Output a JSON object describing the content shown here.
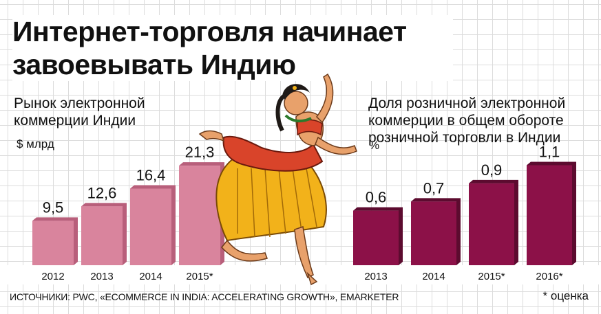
{
  "title_line1": "Интернет-торговля начинает",
  "title_line2": "завоевывать Индию",
  "source": "ИСТОЧНИКИ: PWC, «ECOMMERCE IN INDIA: ACCELERATING GROWTH», EMARKETER",
  "footnote": "* оценка",
  "colors": {
    "left_bar": "#d9849d",
    "left_bar_side": "#b85f7b",
    "right_bar": "#8c1148",
    "right_bar_side": "#5c0b2f"
  },
  "chart_data": [
    {
      "type": "bar",
      "title_lines": [
        "Рынок электронной",
        "коммерции Индии"
      ],
      "unit": "$ млрд",
      "categories": [
        "2012",
        "2013",
        "2014",
        "2015*"
      ],
      "values": [
        9.5,
        12.6,
        16.4,
        21.3
      ],
      "value_labels": [
        "9,5",
        "12,6",
        "16,4",
        "21,3"
      ],
      "ylim": [
        0,
        25
      ]
    },
    {
      "type": "bar",
      "title_lines": [
        "Доля розничной электронной",
        "коммерции в общем обороте",
        "розничной торговли в Индии"
      ],
      "unit": "%",
      "categories": [
        "2013",
        "2014",
        "2015*",
        "2016*"
      ],
      "values": [
        0.6,
        0.7,
        0.9,
        1.1
      ],
      "value_labels": [
        "0,6",
        "0,7",
        "0,9",
        "1,1"
      ],
      "ylim": [
        0,
        1.3
      ]
    }
  ]
}
